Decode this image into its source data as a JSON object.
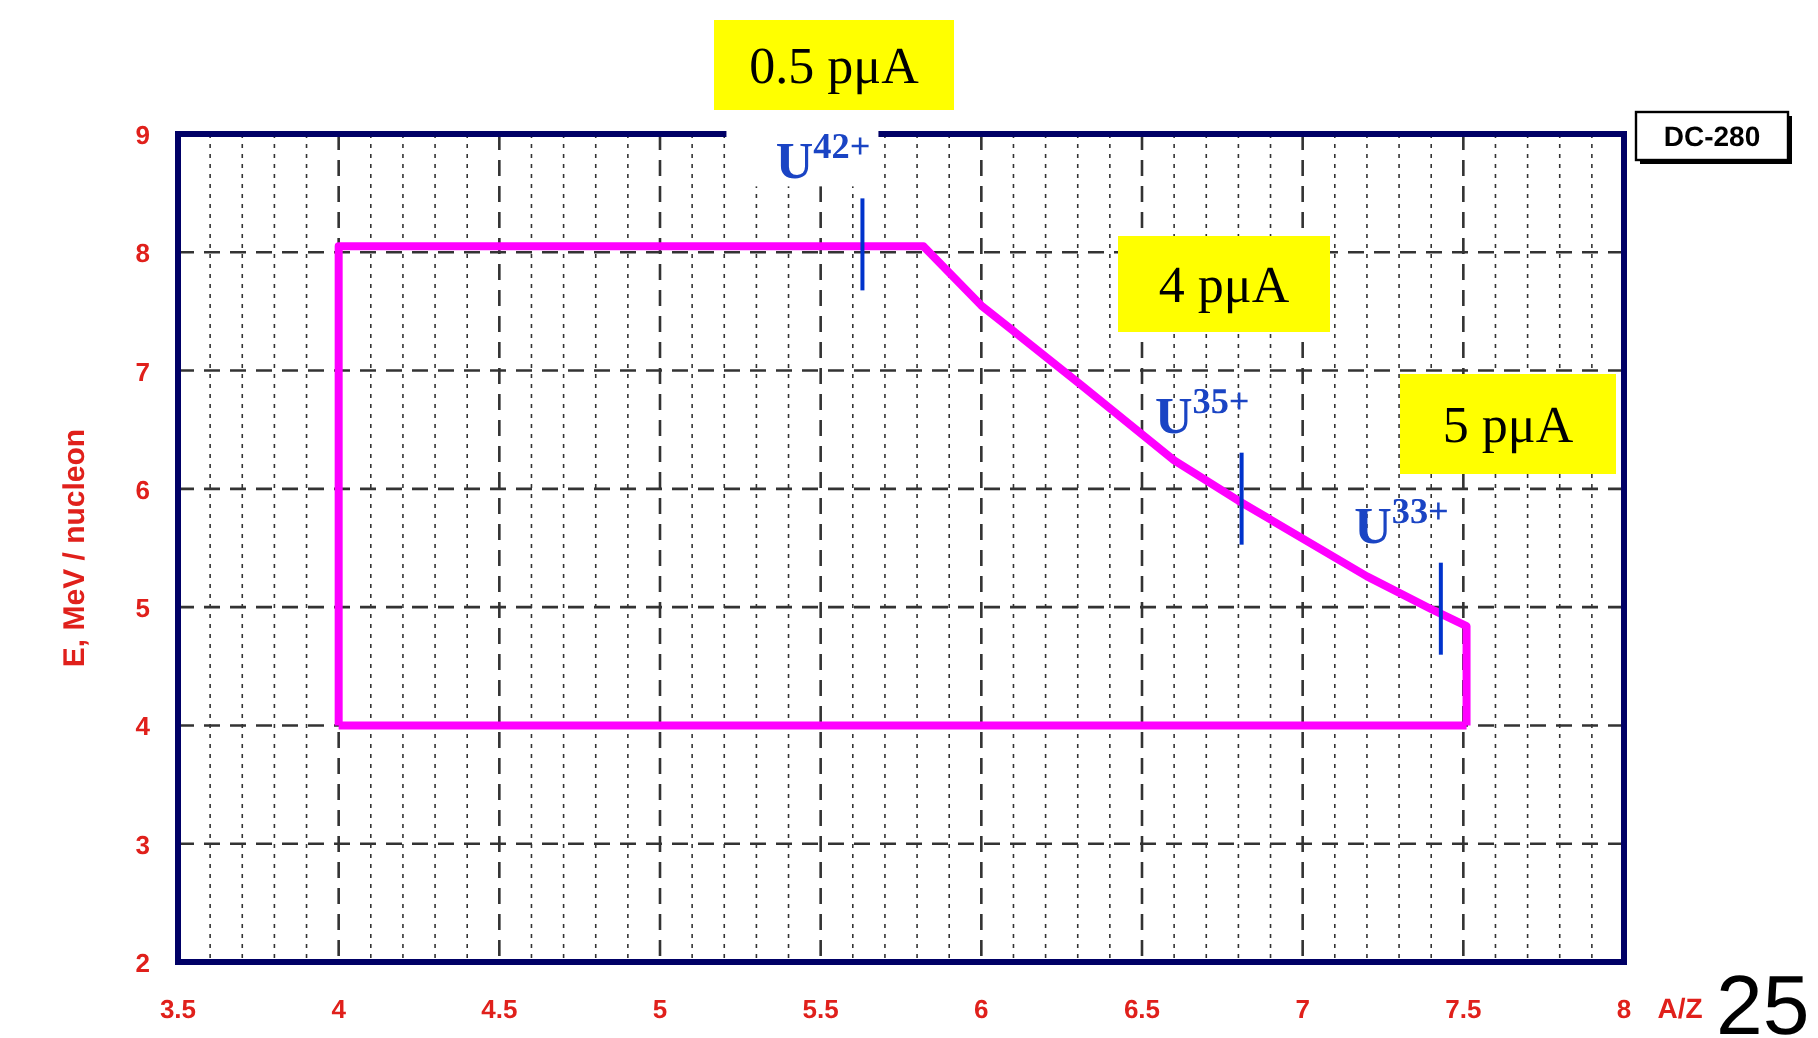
{
  "chart_data": {
    "type": "line",
    "xlabel": "A/Z",
    "ylabel": "E, MeV / nucleon",
    "x": [
      4,
      4,
      5.82,
      6.0,
      6.31,
      6.6,
      6.8,
      7.2,
      7.41,
      7.51,
      7.51
    ],
    "series": [
      {
        "color": "#ff00ff",
        "values": [
          4,
          8.05,
          8.05,
          7.55,
          6.88,
          6.24,
          5.9,
          5.26,
          4.97,
          4.84,
          4
        ]
      },
      {
        "color": "#ff00ff",
        "x": [
          4,
          7.51
        ],
        "values": [
          4,
          4
        ]
      }
    ],
    "xlim": [
      3.5,
      8
    ],
    "ylim": [
      2,
      9
    ],
    "xticks": [
      3.5,
      4,
      4.5,
      5,
      5.5,
      6,
      6.5,
      7,
      7.5,
      8
    ],
    "yticks": [
      2,
      3,
      4,
      5,
      6,
      7,
      8,
      9
    ],
    "grid": true,
    "marker": "none",
    "line_style": "solid",
    "annotations": [
      "0.5 pμA",
      "4 pμA",
      "5 pμA",
      "DC-280",
      "25",
      {
        "text": "U$^{42+}$",
        "x": 5.63,
        "y": 8.05
      },
      {
        "text": "U$^{35+}$",
        "x": 6.81,
        "y": 5.9
      },
      {
        "text": "U$^{33+}$",
        "x": 7.43,
        "y": 4.97
      }
    ]
  }
}
